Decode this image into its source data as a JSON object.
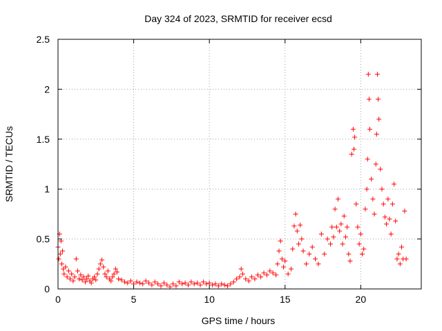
{
  "chart_data": {
    "type": "scatter",
    "title": "Day 324 of 2023, SRMTID for receiver ecsd",
    "xlabel": "GPS time / hours",
    "ylabel": "SRMTID / TECUs",
    "xlim": [
      0,
      24
    ],
    "ylim": [
      0,
      2.5
    ],
    "x_ticks": [
      0,
      5,
      10,
      15,
      20
    ],
    "y_ticks": [
      0,
      0.5,
      1,
      1.5,
      2,
      2.5
    ],
    "x_tick_labels": [
      "0",
      "5",
      "10",
      "15",
      "20"
    ],
    "y_tick_labels": [
      "0",
      "0.5",
      "1",
      "1.5",
      "2",
      "2.5"
    ],
    "grid": true,
    "marker": "+",
    "color": "#ff0000",
    "series": [
      {
        "name": "SRMTID",
        "points": [
          [
            0.0,
            0.42
          ],
          [
            0.05,
            0.3
          ],
          [
            0.1,
            0.55
          ],
          [
            0.15,
            0.35
          ],
          [
            0.2,
            0.48
          ],
          [
            0.25,
            0.25
          ],
          [
            0.3,
            0.38
          ],
          [
            0.35,
            0.2
          ],
          [
            0.4,
            0.15
          ],
          [
            0.5,
            0.22
          ],
          [
            0.6,
            0.12
          ],
          [
            0.7,
            0.18
          ],
          [
            0.8,
            0.1
          ],
          [
            0.9,
            0.15
          ],
          [
            1.0,
            0.08
          ],
          [
            1.1,
            0.12
          ],
          [
            1.2,
            0.3
          ],
          [
            1.3,
            0.18
          ],
          [
            1.4,
            0.1
          ],
          [
            1.5,
            0.14
          ],
          [
            1.6,
            0.09
          ],
          [
            1.7,
            0.12
          ],
          [
            1.8,
            0.07
          ],
          [
            1.9,
            0.1
          ],
          [
            2.0,
            0.13
          ],
          [
            2.1,
            0.08
          ],
          [
            2.2,
            0.06
          ],
          [
            2.3,
            0.1
          ],
          [
            2.4,
            0.12
          ],
          [
            2.5,
            0.09
          ],
          [
            2.6,
            0.15
          ],
          [
            2.7,
            0.2
          ],
          [
            2.8,
            0.25
          ],
          [
            2.9,
            0.29
          ],
          [
            3.0,
            0.22
          ],
          [
            3.1,
            0.15
          ],
          [
            3.2,
            0.12
          ],
          [
            3.3,
            0.18
          ],
          [
            3.4,
            0.1
          ],
          [
            3.5,
            0.08
          ],
          [
            3.6,
            0.12
          ],
          [
            3.7,
            0.15
          ],
          [
            3.8,
            0.2
          ],
          [
            3.9,
            0.17
          ],
          [
            4.0,
            0.1
          ],
          [
            4.2,
            0.09
          ],
          [
            4.4,
            0.07
          ],
          [
            4.6,
            0.06
          ],
          [
            4.8,
            0.08
          ],
          [
            5.0,
            0.05
          ],
          [
            5.2,
            0.07
          ],
          [
            5.4,
            0.06
          ],
          [
            5.6,
            0.05
          ],
          [
            5.8,
            0.08
          ],
          [
            6.0,
            0.06
          ],
          [
            6.2,
            0.04
          ],
          [
            6.4,
            0.07
          ],
          [
            6.6,
            0.05
          ],
          [
            6.8,
            0.03
          ],
          [
            7.0,
            0.06
          ],
          [
            7.2,
            0.04
          ],
          [
            7.4,
            0.02
          ],
          [
            7.6,
            0.05
          ],
          [
            7.8,
            0.03
          ],
          [
            8.0,
            0.07
          ],
          [
            8.2,
            0.05
          ],
          [
            8.4,
            0.06
          ],
          [
            8.6,
            0.04
          ],
          [
            8.8,
            0.07
          ],
          [
            9.0,
            0.05
          ],
          [
            9.2,
            0.06
          ],
          [
            9.4,
            0.04
          ],
          [
            9.6,
            0.07
          ],
          [
            9.8,
            0.05
          ],
          [
            10.0,
            0.06
          ],
          [
            10.2,
            0.04
          ],
          [
            10.4,
            0.05
          ],
          [
            10.6,
            0.03
          ],
          [
            10.8,
            0.05
          ],
          [
            11.0,
            0.04
          ],
          [
            11.2,
            0.03
          ],
          [
            11.4,
            0.05
          ],
          [
            11.6,
            0.07
          ],
          [
            11.8,
            0.1
          ],
          [
            12.0,
            0.12
          ],
          [
            12.1,
            0.2
          ],
          [
            12.2,
            0.15
          ],
          [
            12.4,
            0.1
          ],
          [
            12.6,
            0.08
          ],
          [
            12.8,
            0.12
          ],
          [
            13.0,
            0.1
          ],
          [
            13.2,
            0.14
          ],
          [
            13.4,
            0.12
          ],
          [
            13.6,
            0.16
          ],
          [
            13.8,
            0.14
          ],
          [
            14.0,
            0.18
          ],
          [
            14.2,
            0.16
          ],
          [
            14.4,
            0.14
          ],
          [
            14.5,
            0.25
          ],
          [
            14.6,
            0.38
          ],
          [
            14.7,
            0.48
          ],
          [
            14.8,
            0.3
          ],
          [
            14.9,
            0.22
          ],
          [
            15.0,
            0.28
          ],
          [
            15.2,
            0.15
          ],
          [
            15.4,
            0.2
          ],
          [
            15.5,
            0.4
          ],
          [
            15.6,
            0.63
          ],
          [
            15.7,
            0.75
          ],
          [
            15.8,
            0.58
          ],
          [
            15.9,
            0.45
          ],
          [
            16.0,
            0.64
          ],
          [
            16.1,
            0.5
          ],
          [
            16.2,
            0.38
          ],
          [
            16.4,
            0.25
          ],
          [
            16.6,
            0.35
          ],
          [
            16.8,
            0.42
          ],
          [
            17.0,
            0.3
          ],
          [
            17.2,
            0.25
          ],
          [
            17.4,
            0.55
          ],
          [
            17.6,
            0.35
          ],
          [
            17.8,
            0.5
          ],
          [
            18.0,
            0.45
          ],
          [
            18.1,
            0.62
          ],
          [
            18.2,
            0.52
          ],
          [
            18.3,
            0.8
          ],
          [
            18.4,
            0.62
          ],
          [
            18.5,
            0.9
          ],
          [
            18.6,
            0.58
          ],
          [
            18.7,
            0.65
          ],
          [
            18.8,
            0.45
          ],
          [
            18.9,
            0.73
          ],
          [
            19.0,
            0.52
          ],
          [
            19.1,
            0.62
          ],
          [
            19.2,
            0.35
          ],
          [
            19.3,
            0.28
          ],
          [
            19.4,
            1.35
          ],
          [
            19.5,
            1.6
          ],
          [
            19.55,
            1.4
          ],
          [
            19.6,
            1.52
          ],
          [
            19.7,
            0.85
          ],
          [
            19.8,
            0.62
          ],
          [
            19.9,
            0.45
          ],
          [
            20.0,
            0.55
          ],
          [
            20.1,
            0.35
          ],
          [
            20.2,
            0.4
          ],
          [
            20.3,
            0.8
          ],
          [
            20.4,
            1.0
          ],
          [
            20.45,
            1.3
          ],
          [
            20.5,
            2.15
          ],
          [
            20.55,
            1.9
          ],
          [
            20.6,
            1.6
          ],
          [
            20.7,
            1.1
          ],
          [
            20.8,
            0.9
          ],
          [
            20.9,
            0.75
          ],
          [
            21.0,
            1.25
          ],
          [
            21.05,
            1.55
          ],
          [
            21.1,
            2.15
          ],
          [
            21.15,
            1.9
          ],
          [
            21.2,
            1.7
          ],
          [
            21.3,
            1.2
          ],
          [
            21.4,
            1.0
          ],
          [
            21.5,
            0.85
          ],
          [
            21.6,
            0.72
          ],
          [
            21.7,
            0.65
          ],
          [
            21.8,
            0.9
          ],
          [
            21.9,
            0.7
          ],
          [
            22.0,
            0.55
          ],
          [
            22.1,
            0.85
          ],
          [
            22.2,
            1.05
          ],
          [
            22.3,
            0.68
          ],
          [
            22.4,
            0.3
          ],
          [
            22.5,
            0.35
          ],
          [
            22.6,
            0.25
          ],
          [
            22.7,
            0.42
          ],
          [
            22.8,
            0.3
          ],
          [
            22.9,
            0.78
          ],
          [
            23.0,
            0.3
          ]
        ]
      }
    ]
  }
}
